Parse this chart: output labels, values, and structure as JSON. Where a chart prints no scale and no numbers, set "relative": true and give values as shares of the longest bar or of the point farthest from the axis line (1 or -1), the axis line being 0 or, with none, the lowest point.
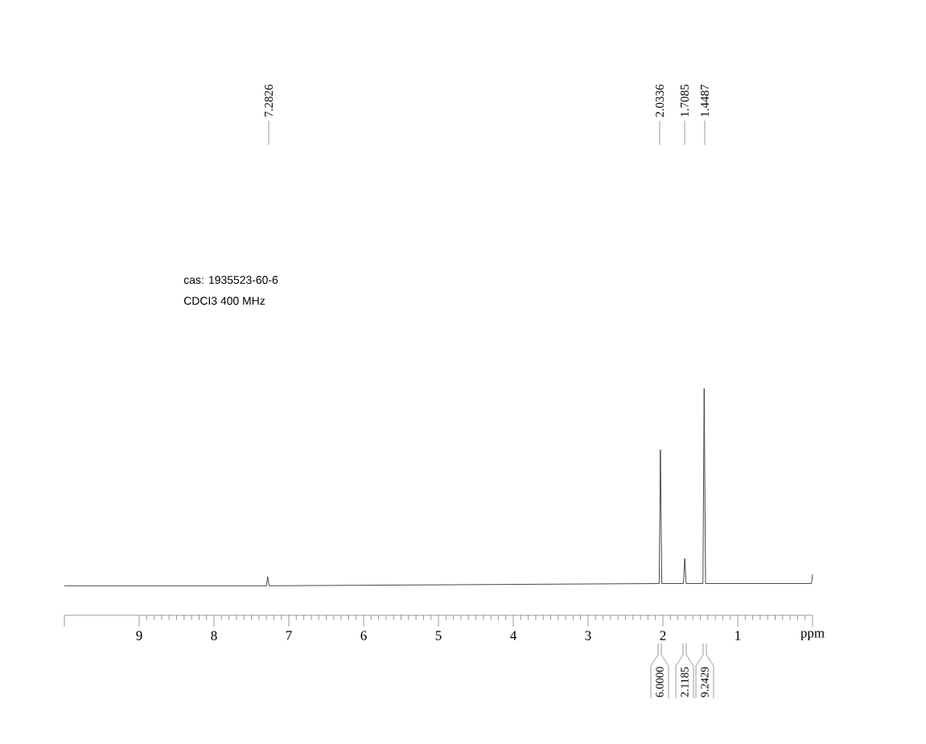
{
  "chart_data": {
    "type": "line",
    "relative": true,
    "color": "#333333",
    "x": [
      10,
      7.3,
      7.2826,
      7.265,
      2.05,
      2.0336,
      2.015,
      1.725,
      1.7085,
      1.69,
      1.465,
      1.4487,
      1.43,
      0.015,
      0
    ],
    "values": [
      0.13,
      0.13,
      0.17,
      0.13,
      0.14,
      0.73,
      0.14,
      0.14,
      0.25,
      0.14,
      0.14,
      1,
      0.14,
      0.14,
      0.18
    ],
    "xlim": [
      10,
      0
    ],
    "xticks": [
      9,
      8,
      7,
      6,
      5,
      4,
      3,
      2,
      1,
      {
        "value": 0,
        "label": "ppm"
      }
    ],
    "annotations": [
      "cas: 1935523-60-6",
      "CDCI3   400  MHz",
      "7.2826",
      "2.0336",
      "1.7085",
      "1.4487",
      "6.0000",
      "2.1185",
      "9.2429"
    ]
  }
}
